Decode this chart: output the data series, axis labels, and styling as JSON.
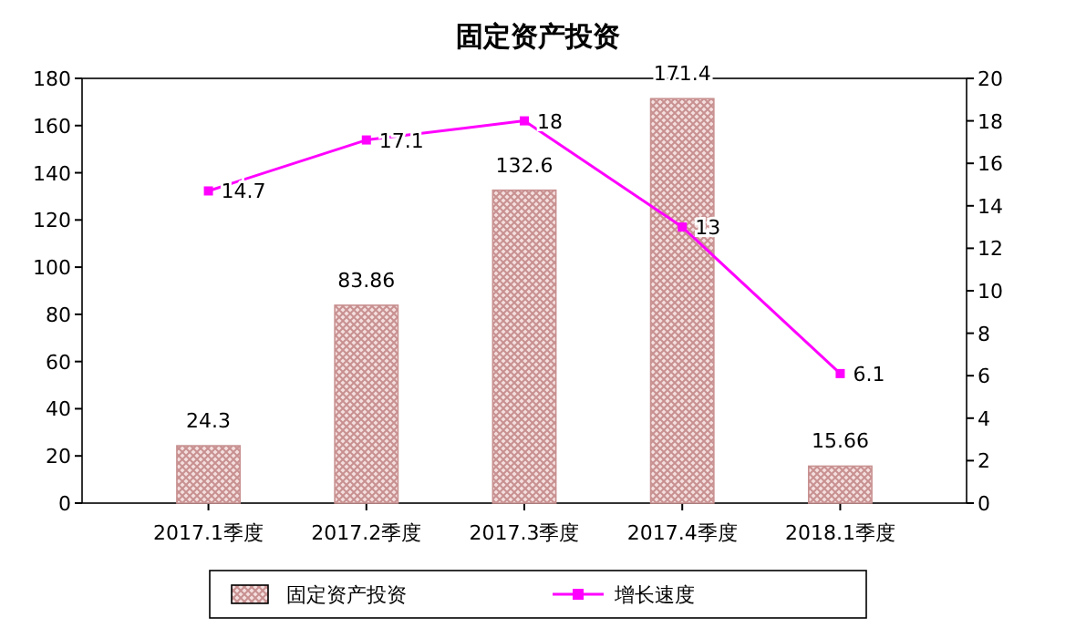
{
  "chart_data": {
    "type": "bar",
    "title": "固定资产投资",
    "categories": [
      "2017.1季度",
      "2017.2季度",
      "2017.3季度",
      "2017.4季度",
      "2018.1季度"
    ],
    "series": [
      {
        "name": "固定资产投资",
        "color": "#c89090",
        "values": [
          24.3,
          83.86,
          132.6,
          171.4,
          15.66
        ]
      },
      {
        "name": "增长速度",
        "type": "line",
        "axis": "y2",
        "color": "#ff00ff",
        "marker": "square",
        "values": [
          14.7,
          17.1,
          18,
          13,
          6.1
        ]
      }
    ],
    "ylim": [
      0,
      180
    ],
    "yticks": [
      0,
      20,
      40,
      60,
      80,
      100,
      120,
      140,
      160,
      180
    ],
    "y2lim": [
      0,
      20
    ],
    "y2ticks": [
      0,
      2,
      4,
      6,
      8,
      10,
      12,
      14,
      16,
      18,
      20
    ],
    "data_labels": true,
    "legend": "bottom",
    "grid": false
  }
}
